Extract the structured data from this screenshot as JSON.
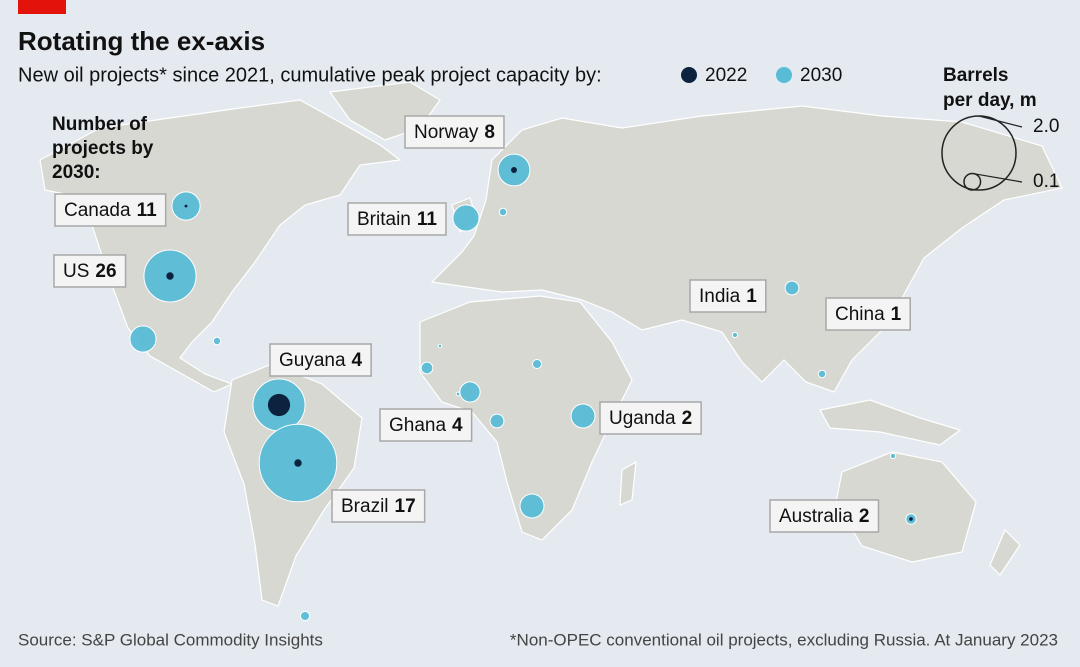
{
  "chart_data": {
    "type": "bubble_map",
    "title": "Rotating the ex-axis",
    "subtitle": "New oil projects* since 2021, cumulative peak project capacity by:",
    "count_label": [
      "Number of",
      "projects by",
      "2030:"
    ],
    "size_label": [
      "Barrels",
      "per day, m"
    ],
    "size_legend": [
      {
        "value": 2,
        "label": "2.0"
      },
      {
        "value": 0.1,
        "label": "0.1"
      }
    ],
    "categories": [
      "Canada",
      "US",
      null,
      null,
      "Norway",
      null,
      "Britain",
      "Guyana",
      "Brazil",
      null,
      null,
      "Ghana",
      null,
      null,
      null,
      "Uganda",
      null,
      "India",
      null,
      "China",
      null,
      "Australia",
      null
    ],
    "projects": [
      11,
      26,
      null,
      null,
      8,
      null,
      11,
      4,
      17,
      null,
      null,
      4,
      null,
      null,
      null,
      2,
      null,
      1,
      null,
      1,
      null,
      2,
      null
    ],
    "series": [
      {
        "name": "2022",
        "color": "#0c2340",
        "values": [
          0.003,
          0.02,
          null,
          null,
          0.013,
          null,
          null,
          0.18,
          0.02,
          null,
          null,
          null,
          null,
          null,
          null,
          null,
          null,
          null,
          null,
          null,
          null,
          0.005,
          null
        ]
      },
      {
        "name": "2030",
        "color": "#59bcd6",
        "values": [
          0.29,
          0.99,
          0.25,
          0.02,
          0.37,
          0.02,
          0.25,
          0.99,
          2.2,
          0.05,
          0.005,
          0.15,
          0.005,
          0.03,
          0.07,
          0.21,
          0.21,
          0.07,
          0.01,
          0.02,
          0.01,
          0.04,
          0.03
        ]
      }
    ],
    "source": "Source: S&P Global Commodity Insights",
    "footnote": "*Non-OPEC conventional oil projects, excluding Russia. At January 2023"
  }
}
